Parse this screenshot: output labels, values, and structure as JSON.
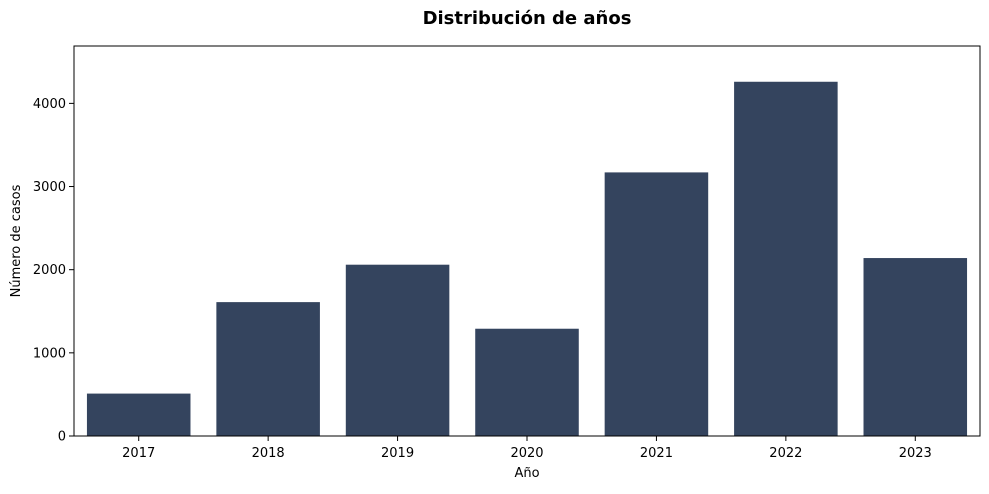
{
  "chart_data": {
    "type": "bar",
    "title": "Distribución de años",
    "xlabel": "Año",
    "ylabel": "Número de casos",
    "categories": [
      "2017",
      "2018",
      "2019",
      "2020",
      "2021",
      "2022",
      "2023"
    ],
    "values": [
      510,
      1610,
      2060,
      1290,
      3170,
      4260,
      2140
    ],
    "ylim": [
      0,
      4690
    ],
    "yticks": [
      0,
      1000,
      2000,
      3000,
      4000
    ],
    "ytick_labels": [
      "0",
      "1000",
      "2000",
      "3000",
      "4000"
    ],
    "grid": false,
    "legend": "none",
    "colors": {
      "bar": "#34445e",
      "axis": "#000000",
      "text": "#000000",
      "background": "#ffffff"
    }
  }
}
